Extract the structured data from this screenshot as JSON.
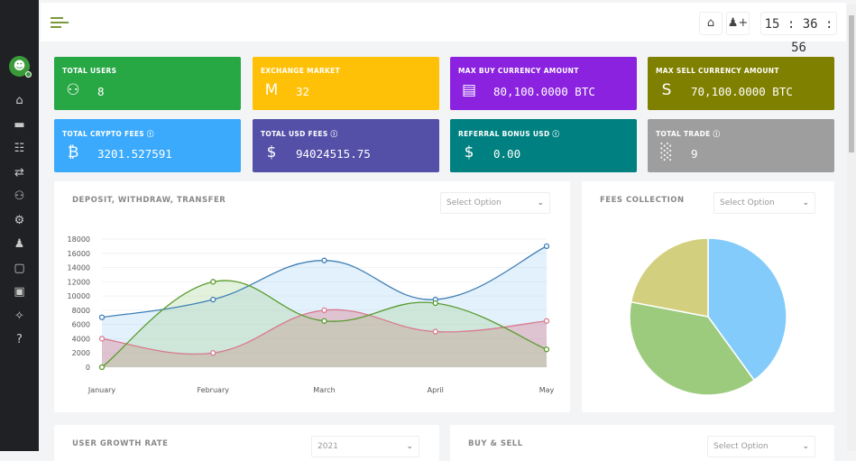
{
  "header": {
    "time": "15 : 36 : 56",
    "icons": [
      "home-icon",
      "add-user-icon"
    ]
  },
  "sidebar": {
    "items": [
      "home-icon",
      "card-icon",
      "chart-icon",
      "transfer-icon",
      "users-icon",
      "gear-icon",
      "user-icon",
      "message-icon",
      "share-icon",
      "magic-wand-icon",
      "help-icon"
    ]
  },
  "cards": [
    {
      "label": "TOTAL USERS",
      "value": "8",
      "icon": "users-icon",
      "color": "#28a745",
      "info": false
    },
    {
      "label": "EXCHANGE MARKET",
      "value": "32",
      "icon": "market-icon",
      "color": "#ffc107",
      "info": false
    },
    {
      "label": "MAX BUY CURRENCY AMOUNT",
      "value": "80,100.0000 BTC",
      "icon": "briefcase-icon",
      "color": "#8a22e0",
      "info": false
    },
    {
      "label": "MAX SELL CURRENCY AMOUNT",
      "value": "70,100.0000 BTC",
      "icon": "currency-icon",
      "color": "#808000",
      "info": false
    },
    {
      "label": "TOTAL CRYPTO FEES",
      "value": "3201.527591",
      "icon": "bitcoin-icon",
      "color": "#3baafc",
      "info": true
    },
    {
      "label": "TOTAL USD FEES",
      "value": "94024515.75",
      "icon": "hand-dollar-icon",
      "color": "#5450a8",
      "info": true
    },
    {
      "label": "REFERRAL BONUS USD",
      "value": "0.00",
      "icon": "dollar-icon",
      "color": "#008080",
      "info": true
    },
    {
      "label": "TOTAL TRADE",
      "value": "9",
      "icon": "trade-chart-icon",
      "color": "#9e9e9e",
      "info": true
    }
  ],
  "panels": {
    "deposit": {
      "title": "DEPOSIT, WITHDRAW, TRANSFER",
      "select": "Select Option"
    },
    "fees": {
      "title": "FEES COLLECTION",
      "select": "Select Option"
    },
    "growth": {
      "title": "USER GROWTH RATE",
      "select": "2021"
    },
    "buysell": {
      "title": "BUY & SELL",
      "select": "Select Option"
    }
  },
  "chart_data": [
    {
      "type": "area",
      "categories": [
        "January",
        "February",
        "March",
        "April",
        "May"
      ],
      "ylim": [
        0,
        18000
      ],
      "yticks": [
        0,
        2000,
        4000,
        6000,
        8000,
        10000,
        12000,
        14000,
        16000,
        18000
      ],
      "grid": true,
      "series": [
        {
          "values": [
            7000,
            9500,
            15000,
            9500,
            17000
          ],
          "color": "#3e7fb5",
          "fill": "rgba(175,215,245,0.35)"
        },
        {
          "values": [
            4000,
            2000,
            8000,
            5000,
            6500
          ],
          "color": "#d9798f",
          "fill": "rgba(215,140,155,0.45)"
        },
        {
          "values": [
            0,
            12000,
            6500,
            9000,
            2500
          ],
          "color": "#5a9c2e",
          "fill": "rgba(160,210,140,0.3)"
        }
      ]
    },
    {
      "type": "pie",
      "values": [
        40,
        38,
        22
      ],
      "colors": [
        "#82cbfa",
        "#9ccb7e",
        "#d2d07e"
      ]
    }
  ]
}
